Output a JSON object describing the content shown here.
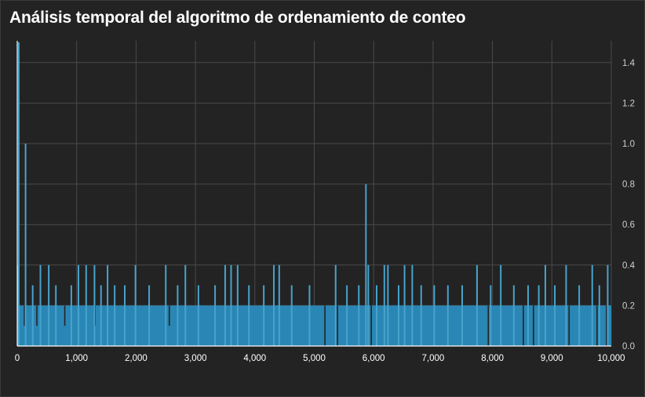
{
  "title": "Análisis temporal del algoritmo de ordenamiento de conteo",
  "colors": {
    "background": "#232323",
    "grid": "#4a4a4a",
    "bar": "#2a86b4",
    "spike": "#47a3cc",
    "axis_line": "#ffffff",
    "x_tick_text": "#ffffff",
    "y_tick_text": "#cfcfcf"
  },
  "chart_data": {
    "type": "bar",
    "title": "Análisis temporal del algoritmo de ordenamiento de conteo",
    "xlabel": "",
    "ylabel": "",
    "xlim": [
      0,
      10000
    ],
    "ylim": [
      0,
      1.5
    ],
    "y_axis_side": "right",
    "grid": true,
    "legend": "none",
    "x_ticks": [
      0,
      1000,
      2000,
      3000,
      4000,
      5000,
      6000,
      7000,
      8000,
      9000,
      10000
    ],
    "x_tick_labels": [
      "0",
      "1,000",
      "2,000",
      "3,000",
      "4,000",
      "5,000",
      "6,000",
      "7,000",
      "8,000",
      "9,000",
      "10,000"
    ],
    "y_ticks": [
      0,
      0.2,
      0.4,
      0.6,
      0.8,
      1.0,
      1.2,
      1.4
    ],
    "y_tick_labels": [
      "0.0",
      "0.2",
      "0.4",
      "0.6",
      "0.8",
      "1.0",
      "1.2",
      "1.4"
    ],
    "baseline": {
      "value": 0.2,
      "x_range": [
        0,
        10000
      ]
    },
    "spikes": [
      {
        "x": 25,
        "y": 1.5
      },
      {
        "x": 140,
        "y": 1.0
      },
      {
        "x": 5870,
        "y": 0.8
      },
      {
        "x": 10,
        "y": 0.4
      },
      {
        "x": 390,
        "y": 0.4
      },
      {
        "x": 530,
        "y": 0.4
      },
      {
        "x": 1030,
        "y": 0.4
      },
      {
        "x": 1160,
        "y": 0.4
      },
      {
        "x": 1300,
        "y": 0.4
      },
      {
        "x": 1520,
        "y": 0.4
      },
      {
        "x": 1990,
        "y": 0.4
      },
      {
        "x": 2500,
        "y": 0.4
      },
      {
        "x": 2830,
        "y": 0.4
      },
      {
        "x": 3500,
        "y": 0.4
      },
      {
        "x": 3600,
        "y": 0.4
      },
      {
        "x": 3710,
        "y": 0.4
      },
      {
        "x": 4320,
        "y": 0.4
      },
      {
        "x": 4410,
        "y": 0.4
      },
      {
        "x": 5360,
        "y": 0.4
      },
      {
        "x": 5910,
        "y": 0.4
      },
      {
        "x": 6180,
        "y": 0.4
      },
      {
        "x": 6240,
        "y": 0.4
      },
      {
        "x": 6520,
        "y": 0.4
      },
      {
        "x": 6650,
        "y": 0.4
      },
      {
        "x": 7740,
        "y": 0.4
      },
      {
        "x": 8140,
        "y": 0.4
      },
      {
        "x": 8890,
        "y": 0.4
      },
      {
        "x": 9240,
        "y": 0.4
      },
      {
        "x": 9680,
        "y": 0.4
      },
      {
        "x": 9940,
        "y": 0.4
      },
      {
        "x": 260,
        "y": 0.3
      },
      {
        "x": 650,
        "y": 0.3
      },
      {
        "x": 910,
        "y": 0.3
      },
      {
        "x": 1410,
        "y": 0.3
      },
      {
        "x": 1640,
        "y": 0.3
      },
      {
        "x": 1810,
        "y": 0.3
      },
      {
        "x": 2220,
        "y": 0.3
      },
      {
        "x": 2700,
        "y": 0.3
      },
      {
        "x": 3050,
        "y": 0.3
      },
      {
        "x": 3330,
        "y": 0.3
      },
      {
        "x": 3900,
        "y": 0.3
      },
      {
        "x": 4150,
        "y": 0.3
      },
      {
        "x": 4620,
        "y": 0.3
      },
      {
        "x": 4920,
        "y": 0.3
      },
      {
        "x": 5550,
        "y": 0.3
      },
      {
        "x": 5750,
        "y": 0.3
      },
      {
        "x": 6050,
        "y": 0.3
      },
      {
        "x": 6420,
        "y": 0.3
      },
      {
        "x": 6800,
        "y": 0.3
      },
      {
        "x": 7020,
        "y": 0.3
      },
      {
        "x": 7250,
        "y": 0.3
      },
      {
        "x": 7490,
        "y": 0.3
      },
      {
        "x": 7970,
        "y": 0.3
      },
      {
        "x": 8360,
        "y": 0.3
      },
      {
        "x": 8600,
        "y": 0.3
      },
      {
        "x": 8780,
        "y": 0.3
      },
      {
        "x": 9050,
        "y": 0.3
      },
      {
        "x": 9460,
        "y": 0.3
      },
      {
        "x": 9800,
        "y": 0.3
      }
    ],
    "drops": [
      {
        "x": 120,
        "y": 0.1
      },
      {
        "x": 330,
        "y": 0.1
      },
      {
        "x": 800,
        "y": 0.1
      },
      {
        "x": 1310,
        "y": 0.1
      },
      {
        "x": 2560,
        "y": 0.1
      },
      {
        "x": 5180,
        "y": 0.0
      },
      {
        "x": 5390,
        "y": 0.0
      },
      {
        "x": 5960,
        "y": 0.0
      },
      {
        "x": 7930,
        "y": 0.0
      },
      {
        "x": 8520,
        "y": 0.0
      },
      {
        "x": 8690,
        "y": 0.0
      },
      {
        "x": 9290,
        "y": 0.0
      },
      {
        "x": 9760,
        "y": 0.0
      },
      {
        "x": 9920,
        "y": 0.0
      }
    ]
  }
}
